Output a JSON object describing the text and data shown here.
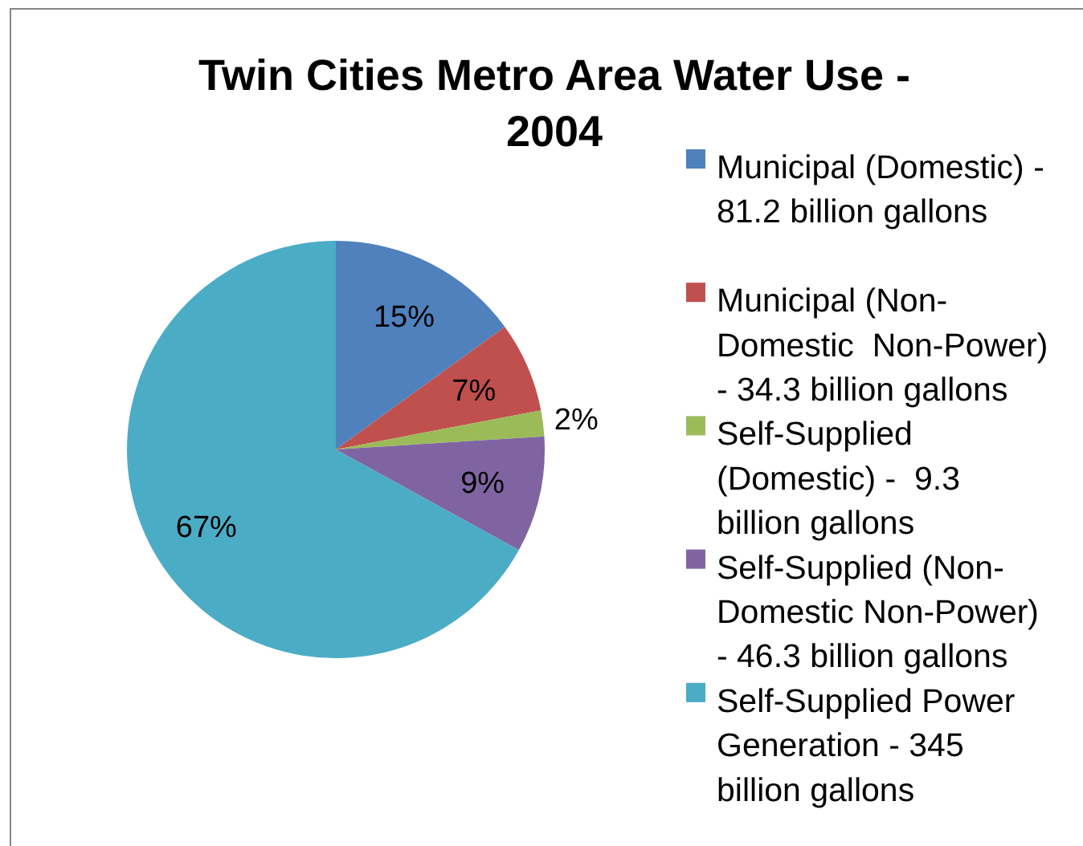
{
  "chart_data": {
    "type": "pie",
    "title": "Twin Cities Metro Area Water Use - 2004",
    "categories": [
      "Municipal (Domestic) - 81.2 billion gallons",
      "Municipal (Non-Domestic  Non-Power) - 34.3 billion gallons",
      "Self-Supplied (Domestic) -  9.3 billion gallons",
      "Self-Supplied (Non-Domestic Non-Power) - 46.3 billion gallons",
      "Self-Supplied Power Generation - 345 billion gallons"
    ],
    "values": [
      15,
      7,
      2,
      9,
      67
    ],
    "colors": [
      "#4f81bd",
      "#c0504d",
      "#9bbb59",
      "#8064a2",
      "#4bacc6"
    ],
    "value_labels": [
      "15%",
      "7%",
      "2%",
      "9%",
      "67%"
    ],
    "legend": "right"
  }
}
